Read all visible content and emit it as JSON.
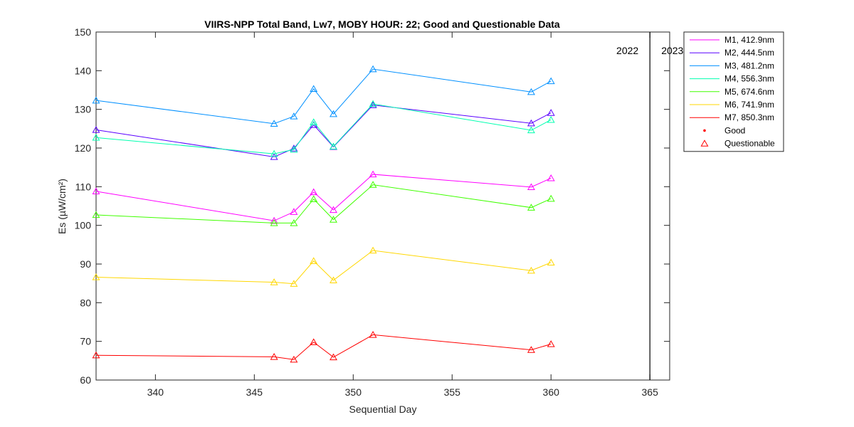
{
  "chart_data": {
    "type": "line",
    "title": "VIIRS-NPP Total Band,  Lw7, MOBY HOUR: 22;  Good and Questionable Data",
    "xlabel": "Sequential Day",
    "ylabel": "Es (µW/cm²)",
    "xlim": [
      337,
      366
    ],
    "ylim": [
      60,
      150
    ],
    "xticks": [
      340,
      345,
      350,
      355,
      360,
      365
    ],
    "yticks": [
      60,
      70,
      80,
      90,
      100,
      110,
      120,
      130,
      140,
      150
    ],
    "grid": false,
    "legend_position": "outside-top-right",
    "x": [
      337,
      346,
      347,
      348,
      349,
      351,
      359,
      360
    ],
    "series": [
      {
        "name": "M1, 412.9nm",
        "color": "#ff00ff",
        "values": [
          108.8,
          101.2,
          103.5,
          108.6,
          104.0,
          113.2,
          109.9,
          112.2
        ]
      },
      {
        "name": "M2, 444.5nm",
        "color": "#5a00ff",
        "values": [
          124.7,
          117.7,
          119.9,
          126.0,
          120.3,
          131.1,
          126.4,
          129.1
        ]
      },
      {
        "name": "M3, 481.2nm",
        "color": "#0090ff",
        "values": [
          132.3,
          126.3,
          128.2,
          135.3,
          128.8,
          140.4,
          134.5,
          137.3
        ]
      },
      {
        "name": "M4, 556.3nm",
        "color": "#00ffb0",
        "values": [
          122.7,
          118.5,
          119.6,
          126.7,
          120.4,
          131.4,
          124.6,
          127.3
        ]
      },
      {
        "name": "M5, 674.6nm",
        "color": "#40ff00",
        "values": [
          102.7,
          100.6,
          100.6,
          106.8,
          101.5,
          110.5,
          104.6,
          106.9
        ]
      },
      {
        "name": "M6, 741.9nm",
        "color": "#ffd700",
        "values": [
          86.6,
          85.3,
          84.9,
          90.8,
          85.8,
          93.5,
          88.3,
          90.4
        ]
      },
      {
        "name": "M7, 850.3nm",
        "color": "#ff0000",
        "values": [
          66.4,
          66.0,
          65.3,
          69.8,
          65.9,
          71.7,
          67.8,
          69.3
        ]
      }
    ],
    "legend_markers": [
      {
        "name": "Good",
        "marker": "dot",
        "color": "#ff0000"
      },
      {
        "name": "Questionable",
        "marker": "triangle",
        "color": "#ff0000"
      }
    ],
    "year_boundary": {
      "x": 365,
      "left_label": "2022",
      "right_label": "2023"
    }
  }
}
